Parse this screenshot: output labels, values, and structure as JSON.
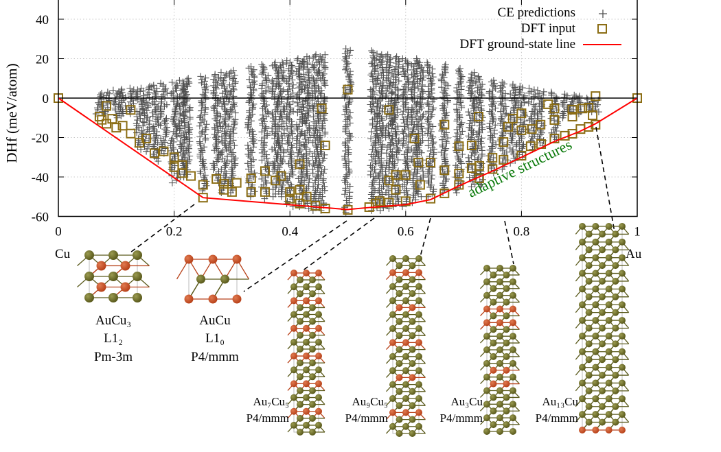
{
  "chart_data": {
    "type": "scatter",
    "title": "",
    "xlabel": "",
    "ylabel": "DHf (meV/atom)",
    "xlim": [
      0,
      1
    ],
    "ylim": [
      -60,
      50
    ],
    "x_ticks": [
      "0",
      "0.2",
      "0.4",
      "0.6",
      "0.8",
      "1"
    ],
    "y_ticks": [
      "40",
      "20",
      "0",
      "-20",
      "-40",
      "-60"
    ],
    "grid": true,
    "legend_position": "top-right",
    "endpoint_labels": {
      "left": "Cu",
      "right": "Au"
    },
    "annotation": {
      "text": "adaptive structures",
      "color": "#0a7a0a"
    },
    "colors": {
      "ce": "#505050",
      "dft": "#8b6d14",
      "gs_line": "#ff0000",
      "au_atom": "#5a5a1c",
      "cu_atom": "#b8421a"
    },
    "series": [
      {
        "name": "CE predictions",
        "marker": "plus",
        "columns": [
          {
            "x": 0.071,
            "min": -8,
            "max": 2.5
          },
          {
            "x": 0.083,
            "min": -8,
            "max": 3
          },
          {
            "x": 0.1,
            "min": -10,
            "max": 4
          },
          {
            "x": 0.111,
            "min": -9,
            "max": 4.5
          },
          {
            "x": 0.125,
            "min": -8,
            "max": 5
          },
          {
            "x": 0.14,
            "min": -26,
            "max": 5
          },
          {
            "x": 0.152,
            "min": -27,
            "max": 6
          },
          {
            "x": 0.167,
            "min": -32,
            "max": 6.5
          },
          {
            "x": 0.182,
            "min": -28,
            "max": 7.5
          },
          {
            "x": 0.2,
            "min": -43,
            "max": 8
          },
          {
            "x": 0.214,
            "min": -40,
            "max": 9
          },
          {
            "x": 0.222,
            "min": -40,
            "max": 10
          },
          {
            "x": 0.25,
            "min": -47,
            "max": 11
          },
          {
            "x": 0.273,
            "min": -43,
            "max": 12
          },
          {
            "x": 0.286,
            "min": -48,
            "max": 13
          },
          {
            "x": 0.3,
            "min": -48,
            "max": 14
          },
          {
            "x": 0.333,
            "min": -50,
            "max": 16
          },
          {
            "x": 0.357,
            "min": -51,
            "max": 17
          },
          {
            "x": 0.375,
            "min": -50,
            "max": 18
          },
          {
            "x": 0.385,
            "min": -50,
            "max": 18
          },
          {
            "x": 0.4,
            "min": -55,
            "max": 19
          },
          {
            "x": 0.417,
            "min": -55,
            "max": 20
          },
          {
            "x": 0.429,
            "min": -56,
            "max": 21
          },
          {
            "x": 0.444,
            "min": -57,
            "max": 22
          },
          {
            "x": 0.455,
            "min": -57,
            "max": 22
          },
          {
            "x": 0.5,
            "min": -58,
            "max": 25
          },
          {
            "x": 0.545,
            "min": -57,
            "max": 24
          },
          {
            "x": 0.556,
            "min": -57,
            "max": 22
          },
          {
            "x": 0.571,
            "min": -56,
            "max": 22
          },
          {
            "x": 0.583,
            "min": -55,
            "max": 21
          },
          {
            "x": 0.6,
            "min": -55,
            "max": 20
          },
          {
            "x": 0.615,
            "min": -53,
            "max": 20
          },
          {
            "x": 0.625,
            "min": -50,
            "max": 18
          },
          {
            "x": 0.643,
            "min": -50,
            "max": 18
          },
          {
            "x": 0.667,
            "min": -48,
            "max": 17
          },
          {
            "x": 0.692,
            "min": -48,
            "max": 15
          },
          {
            "x": 0.714,
            "min": -45,
            "max": 13
          },
          {
            "x": 0.727,
            "min": -45,
            "max": 11
          },
          {
            "x": 0.75,
            "min": -38,
            "max": 9
          },
          {
            "x": 0.769,
            "min": -36,
            "max": 8
          },
          {
            "x": 0.786,
            "min": -33,
            "max": 7
          },
          {
            "x": 0.8,
            "min": -30,
            "max": 6
          },
          {
            "x": 0.818,
            "min": -26,
            "max": 5
          },
          {
            "x": 0.833,
            "min": -24,
            "max": 4
          },
          {
            "x": 0.857,
            "min": -21,
            "max": 3
          },
          {
            "x": 0.875,
            "min": -10,
            "max": 2
          },
          {
            "x": 0.889,
            "min": -8,
            "max": 1.5
          },
          {
            "x": 0.9,
            "min": -8,
            "max": 1
          },
          {
            "x": 0.917,
            "min": -7,
            "max": 0
          },
          {
            "x": 0.928,
            "min": -7,
            "max": -1
          }
        ]
      },
      {
        "name": "DFT input",
        "marker": "square",
        "points": [
          [
            0,
            0
          ],
          [
            0.083,
            -4
          ],
          [
            0.071,
            -9.4
          ],
          [
            0.075,
            -11
          ],
          [
            0.083,
            -13
          ],
          [
            0.093,
            -10.5
          ],
          [
            0.1,
            -15
          ],
          [
            0.111,
            -14
          ],
          [
            0.125,
            -6
          ],
          [
            0.125,
            -18
          ],
          [
            0.14,
            -22.7
          ],
          [
            0.152,
            -20.5
          ],
          [
            0.166,
            -28
          ],
          [
            0.182,
            -27
          ],
          [
            0.2,
            -30
          ],
          [
            0.2,
            -35
          ],
          [
            0.214,
            -34
          ],
          [
            0.214,
            -38
          ],
          [
            0.229,
            -39.5
          ],
          [
            0.25,
            -44
          ],
          [
            0.25,
            -50.5
          ],
          [
            0.273,
            -41
          ],
          [
            0.286,
            -43.5
          ],
          [
            0.286,
            -46.5
          ],
          [
            0.3,
            -47.6
          ],
          [
            0.308,
            -43
          ],
          [
            0.333,
            -40.7
          ],
          [
            0.333,
            -47.6
          ],
          [
            0.357,
            -37
          ],
          [
            0.357,
            -47.6
          ],
          [
            0.375,
            -41.8
          ],
          [
            0.385,
            -39.5
          ],
          [
            0.4,
            -47.6
          ],
          [
            0.4,
            -51
          ],
          [
            0.417,
            -33.5
          ],
          [
            0.417,
            -46.5
          ],
          [
            0.417,
            -53.5
          ],
          [
            0.429,
            -50
          ],
          [
            0.444,
            -54.6
          ],
          [
            0.455,
            -5.3
          ],
          [
            0.461,
            -24
          ],
          [
            0.461,
            -56
          ],
          [
            0.5,
            4.3
          ],
          [
            0.5,
            -56.7
          ],
          [
            0.537,
            -55.3
          ],
          [
            0.548,
            -53.5
          ],
          [
            0.555,
            -52.3
          ],
          [
            0.571,
            -6
          ],
          [
            0.571,
            -41.8
          ],
          [
            0.571,
            -53
          ],
          [
            0.583,
            -39
          ],
          [
            0.583,
            -46.5
          ],
          [
            0.6,
            -39
          ],
          [
            0.6,
            -52.3
          ],
          [
            0.615,
            -20.5
          ],
          [
            0.622,
            -32.7
          ],
          [
            0.625,
            -44
          ],
          [
            0.643,
            -32.7
          ],
          [
            0.643,
            -51
          ],
          [
            0.667,
            -13.5
          ],
          [
            0.667,
            -36.6
          ],
          [
            0.667,
            -48.3
          ],
          [
            0.692,
            -24.4
          ],
          [
            0.692,
            -38.3
          ],
          [
            0.692,
            -44
          ],
          [
            0.714,
            -24
          ],
          [
            0.714,
            -35.5
          ],
          [
            0.726,
            -9.4
          ],
          [
            0.727,
            -34.4
          ],
          [
            0.727,
            -40.7
          ],
          [
            0.75,
            -30.3
          ],
          [
            0.75,
            -36
          ],
          [
            0.769,
            -22.3
          ],
          [
            0.769,
            -31.3
          ],
          [
            0.777,
            -14.6
          ],
          [
            0.785,
            -10.4
          ],
          [
            0.8,
            -7.7
          ],
          [
            0.8,
            -16.3
          ],
          [
            0.8,
            -29.2
          ],
          [
            0.816,
            -24.4
          ],
          [
            0.818,
            -15.7
          ],
          [
            0.833,
            -13.5
          ],
          [
            0.834,
            -23.3
          ],
          [
            0.846,
            -3.1
          ],
          [
            0.857,
            -5.3
          ],
          [
            0.857,
            -11.1
          ],
          [
            0.857,
            -20.5
          ],
          [
            0.875,
            -19.1
          ],
          [
            0.888,
            -5.9
          ],
          [
            0.888,
            -9.4
          ],
          [
            0.888,
            -18.1
          ],
          [
            0.902,
            -15.7
          ],
          [
            0.905,
            -5.3
          ],
          [
            0.916,
            -4.9
          ],
          [
            0.916,
            -14.6
          ],
          [
            0.923,
            -8.7
          ],
          [
            0.928,
            1
          ],
          [
            0.928,
            -13.5
          ],
          [
            1,
            0
          ]
        ]
      },
      {
        "name": "DFT ground-state line",
        "marker": "line",
        "points": [
          [
            0,
            0
          ],
          [
            0.25,
            -50.5
          ],
          [
            0.5,
            -56.5
          ],
          [
            0.537,
            -55.5
          ],
          [
            0.6,
            -54
          ],
          [
            0.643,
            -51.5
          ],
          [
            0.692,
            -44.5
          ],
          [
            0.75,
            -37
          ],
          [
            0.8,
            -30
          ],
          [
            0.857,
            -22
          ],
          [
            0.9,
            -17
          ],
          [
            0.928,
            -13
          ],
          [
            1,
            0
          ]
        ]
      }
    ],
    "structures": [
      {
        "formula": "AuCu₃",
        "prototype": "L1₂",
        "space_group": "Pm-3m",
        "x": 0.25,
        "dhf": -50.5
      },
      {
        "formula": "AuCu",
        "prototype": "L1₀",
        "space_group": "P4/mmm",
        "x": 0.5,
        "dhf": -56.5
      },
      {
        "formula": "Au₇Cu₅",
        "space_group": "P4/mmm",
        "x": 0.583,
        "dhf": -54.5
      },
      {
        "formula": "Au₉Cu₅",
        "space_group": "P4/mmm",
        "x": 0.643,
        "dhf": -51.5
      },
      {
        "formula": "Au₃Cu",
        "space_group": "P4/mmm",
        "x": 0.75,
        "dhf": -37
      },
      {
        "formula": "Au₁₃Cu",
        "space_group": "P4/mmm",
        "x": 0.929,
        "dhf": -13
      }
    ]
  }
}
